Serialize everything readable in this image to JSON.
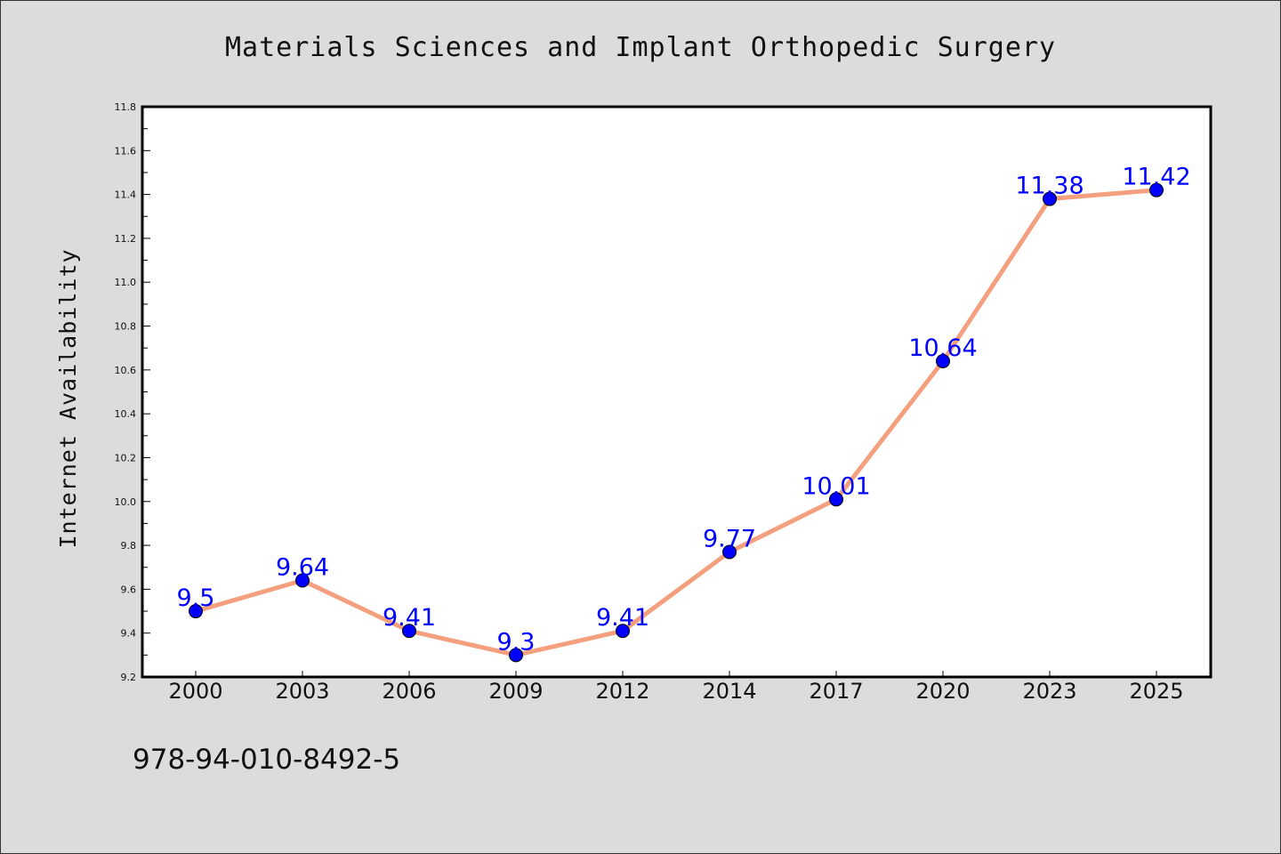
{
  "chart_data": {
    "type": "line",
    "title": "Materials Sciences and Implant Orthopedic Surgery",
    "xlabel": "",
    "ylabel": "Internet Availability",
    "categories": [
      "2000",
      "2003",
      "2006",
      "2009",
      "2012",
      "2014",
      "2017",
      "2020",
      "2023",
      "2025"
    ],
    "series": [
      {
        "values": [
          9.5,
          9.64,
          9.41,
          9.3,
          9.41,
          9.77,
          10.01,
          10.64,
          11.38,
          11.42
        ]
      }
    ],
    "data_labels": [
      "9.5",
      "9.64",
      "9.41",
      "9.3",
      "9.41",
      "9.77",
      "10.01",
      "10.64",
      "11.38",
      "11.42"
    ],
    "ylim": [
      9.2,
      11.8
    ],
    "yticks": [
      "9.2",
      "9.4",
      "9.6",
      "9.8",
      "10.0",
      "10.2",
      "10.4",
      "10.6",
      "10.8",
      "11.0",
      "11.2",
      "11.4",
      "11.6",
      "11.8"
    ],
    "grid": false,
    "legend": "none",
    "colors": {
      "line": "#f4a07e",
      "marker": "#0000ff",
      "label": "#0000ff",
      "plot_background": "#ffffff",
      "page_background": "#dcdcdc"
    }
  },
  "footer": {
    "isbn": "978-94-010-8492-5"
  }
}
